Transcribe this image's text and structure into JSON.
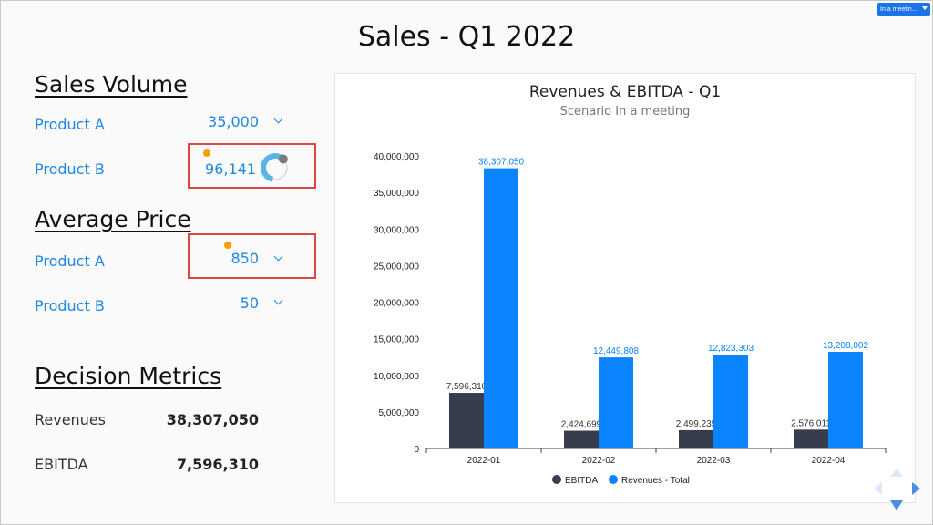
{
  "scenario_select": {
    "value": "In a meetin..."
  },
  "page_title": "Sales - Q1 2022",
  "sales_volume": {
    "title": "Sales Volume",
    "product_a": {
      "label": "Product A",
      "value": "35,000"
    },
    "product_b": {
      "label": "Product B",
      "value": "96,141",
      "knob_level": 0.75
    }
  },
  "average_price": {
    "title": "Average Price",
    "product_a": {
      "label": "Product A",
      "value": "850"
    },
    "product_b": {
      "label": "Product B",
      "value": "50"
    }
  },
  "decision_metrics": {
    "title": "Decision Metrics",
    "revenues": {
      "label": "Revenues",
      "value": "38,307,050"
    },
    "ebitda": {
      "label": "EBITDA",
      "value": "7,596,310"
    }
  },
  "colors": {
    "accent": "#1e88e5",
    "highlight": "#e04646",
    "dot": "#f5a100",
    "ebitda": "#383d4d",
    "revenues": "#0a84ff"
  },
  "chart_data": {
    "type": "bar",
    "title": "Revenues & EBITDA - Q1",
    "subtitle": "Scenario In a meeting",
    "categories": [
      "2022-01",
      "2022-02",
      "2022-03",
      "2022-04"
    ],
    "series": [
      {
        "name": "EBITDA",
        "values": [
          7596310,
          2424699,
          2499235,
          2576011
        ],
        "labels": [
          "7,596,310",
          "2,424,699",
          "2,499,235",
          "2,576,011"
        ],
        "color": "#383d4d"
      },
      {
        "name": "Revenues - Total",
        "values": [
          38307050,
          12449808,
          12823303,
          13208002
        ],
        "labels": [
          "38,307,050",
          "12,449,808",
          "12,823,303",
          "13,208,002"
        ],
        "color": "#0a84ff"
      }
    ],
    "ylim": [
      0,
      40000000
    ],
    "yticks": [
      0,
      5000000,
      10000000,
      15000000,
      20000000,
      25000000,
      30000000,
      35000000,
      40000000
    ],
    "yticklabels": [
      "0",
      "5,000,000",
      "10,000,000",
      "15,000,000",
      "20,000,000",
      "25,000,000",
      "30,000,000",
      "35,000,000",
      "40,000,000"
    ],
    "legend": "bottom",
    "grid": false
  }
}
